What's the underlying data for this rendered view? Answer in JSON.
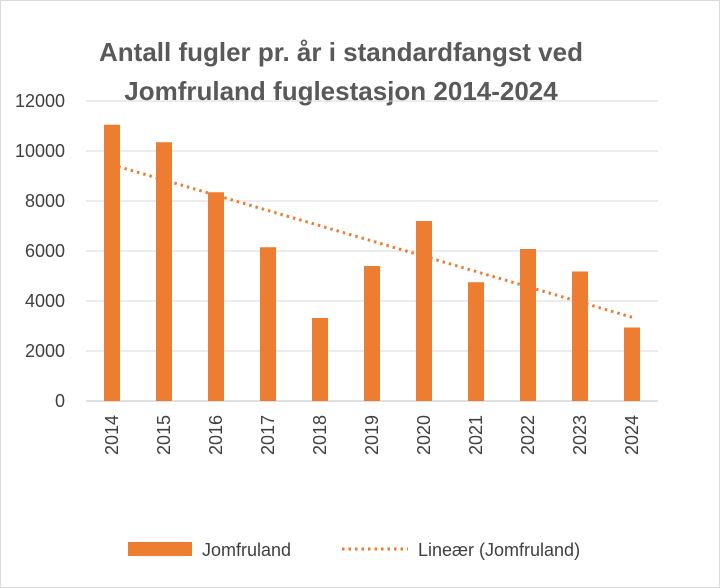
{
  "chart_data": {
    "type": "bar",
    "title_lines": [
      "Antall fugler pr. år i standardfangst ved",
      "Jomfruland fuglestasjon 2014-2024"
    ],
    "categories": [
      "2014",
      "2015",
      "2016",
      "2017",
      "2018",
      "2019",
      "2020",
      "2021",
      "2022",
      "2023",
      "2024"
    ],
    "series": [
      {
        "name": "Jomfruland",
        "values": [
          11050,
          10350,
          8350,
          6150,
          3320,
          5400,
          7200,
          4750,
          6080,
          5180,
          2940
        ],
        "color": "#ED7D31"
      }
    ],
    "trendline": {
      "name": "Lineær (Jomfruland)",
      "type": "linear",
      "color": "#ED7D31",
      "start": 9450,
      "end": 3350
    },
    "ylim": [
      0,
      12000
    ],
    "yticks": [
      0,
      2000,
      4000,
      6000,
      8000,
      10000,
      12000
    ],
    "grid": true,
    "legend_position": "bottom"
  }
}
